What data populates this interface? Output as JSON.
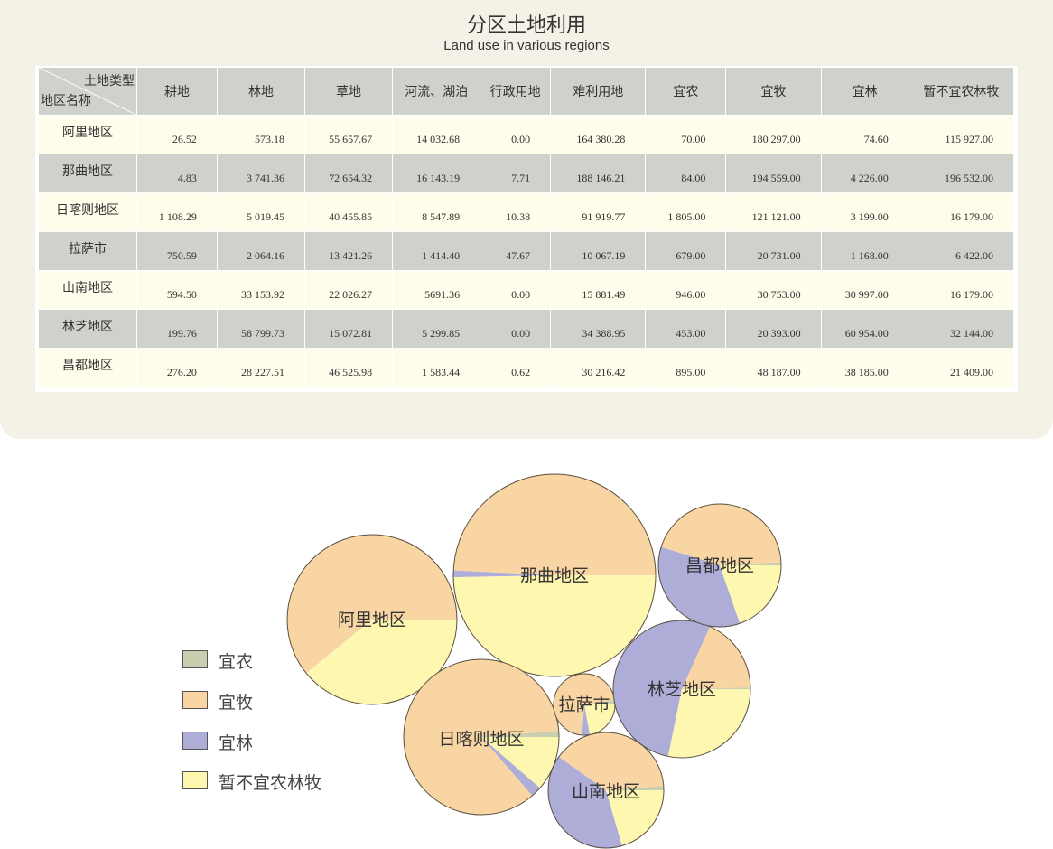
{
  "title": "分区土地利用",
  "subtitle": "Land use in various regions",
  "table": {
    "corner_top": "土地类型",
    "corner_bottom": "地区名称",
    "columns": [
      "耕地",
      "林地",
      "草地",
      "河流、湖泊",
      "行政用地",
      "难利用地",
      "宜农",
      "宜牧",
      "宜林",
      "暂不宜农林牧"
    ],
    "rows": [
      {
        "name": "阿里地区",
        "cells": [
          "26.52",
          "573.18",
          "55 657.67",
          "14 032.68",
          "0.00",
          "164 380.28",
          "70.00",
          "180 297.00",
          "74.60",
          "115 927.00"
        ]
      },
      {
        "name": "那曲地区",
        "cells": [
          "4.83",
          "3 741.36",
          "72 654.32",
          "16 143.19",
          "7.71",
          "188 146.21",
          "84.00",
          "194 559.00",
          "4 226.00",
          "196 532.00"
        ]
      },
      {
        "name": "日喀则地区",
        "cells": [
          "1 108.29",
          "5 019.45",
          "40 455.85",
          "8 547.89",
          "10.38",
          "91 919.77",
          "1 805.00",
          "121 121.00",
          "3 199.00",
          "16 179.00"
        ]
      },
      {
        "name": "拉萨市",
        "cells": [
          "750.59",
          "2 064.16",
          "13 421.26",
          "1 414.40",
          "47.67",
          "10 067.19",
          "679.00",
          "20 731.00",
          "1 168.00",
          "6 422.00"
        ]
      },
      {
        "name": "山南地区",
        "cells": [
          "594.50",
          "33 153.92",
          "22 026.27",
          "5691.36",
          "0.00",
          "15 881.49",
          "946.00",
          "30 753.00",
          "30 997.00",
          "16 179.00"
        ]
      },
      {
        "name": "林芝地区",
        "cells": [
          "199.76",
          "58 799.73",
          "15 072.81",
          "5 299.85",
          "0.00",
          "34 388.95",
          "453.00",
          "20 393.00",
          "60 954.00",
          "32 144.00"
        ]
      },
      {
        "name": "昌都地区",
        "cells": [
          "276.20",
          "28 227.51",
          "46 525.98",
          "1 583.44",
          "0.62",
          "30 216.42",
          "895.00",
          "48 187.00",
          "38 185.00",
          "21 409.00"
        ]
      }
    ]
  },
  "chart_data": {
    "type": "pie",
    "series": [
      {
        "name": "宜农",
        "color": "#c9cfae"
      },
      {
        "name": "宜牧",
        "color": "#f9d5a4"
      },
      {
        "name": "宜林",
        "color": "#adadd8"
      },
      {
        "name": "暂不宜农林牧",
        "color": "#fef7b0"
      }
    ],
    "pies": [
      {
        "region": "阿里地区",
        "values": [
          70.0,
          180297.0,
          74.6,
          115927.0
        ]
      },
      {
        "region": "那曲地区",
        "values": [
          84.0,
          194559.0,
          4226.0,
          196532.0
        ]
      },
      {
        "region": "日喀则地区",
        "values": [
          1805.0,
          121121.0,
          3199.0,
          16179.0
        ]
      },
      {
        "region": "拉萨市",
        "values": [
          679.0,
          20731.0,
          1168.0,
          6422.0
        ]
      },
      {
        "region": "山南地区",
        "values": [
          946.0,
          30753.0,
          30997.0,
          16179.0
        ]
      },
      {
        "region": "林芝地区",
        "values": [
          453.0,
          20393.0,
          60954.0,
          32144.0
        ]
      },
      {
        "region": "昌都地区",
        "values": [
          895.0,
          48187.0,
          38185.0,
          21409.0
        ]
      }
    ]
  }
}
